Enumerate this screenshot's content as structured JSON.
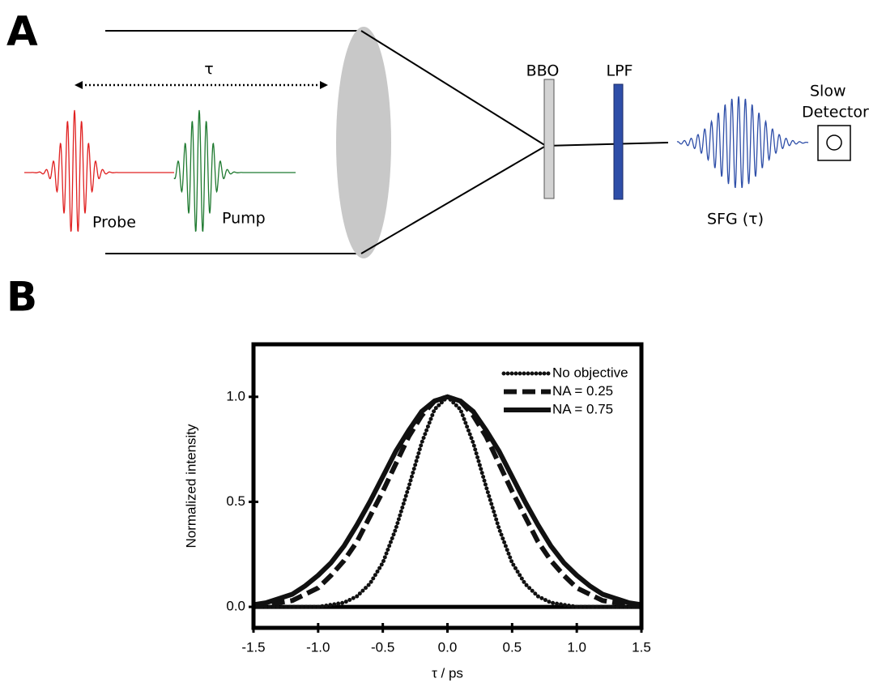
{
  "panels": [
    "A",
    "B"
  ],
  "diagram": {
    "tau": "τ",
    "probe": "Probe",
    "pump": "Pump",
    "bbo": "BBO",
    "lpf": "LPF",
    "detector": [
      "Slow",
      "Detector"
    ],
    "sfg": "SFG (τ)"
  },
  "chart_data": {
    "type": "line",
    "xlabel": "τ / ps",
    "ylabel": "Normalized intensity",
    "x": [
      -1.5,
      -1.4,
      -1.3,
      -1.2,
      -1.1,
      -1.0,
      -0.9,
      -0.8,
      -0.7,
      -0.6,
      -0.5,
      -0.4,
      -0.3,
      -0.2,
      -0.1,
      0,
      0.1,
      0.2,
      0.3,
      0.4,
      0.5,
      0.6,
      0.7,
      0.8,
      0.9,
      1.0,
      1.1,
      1.2,
      1.3,
      1.4,
      1.5
    ],
    "series": [
      {
        "name": "No objective",
        "color": "#111111",
        "style": "dotted",
        "values": [
          0,
          0,
          0,
          0,
          0,
          0,
          0.01,
          0.02,
          0.05,
          0.11,
          0.21,
          0.37,
          0.57,
          0.78,
          0.94,
          1,
          0.94,
          0.78,
          0.57,
          0.37,
          0.21,
          0.11,
          0.05,
          0.02,
          0.01,
          0,
          0,
          0,
          0,
          0,
          0
        ]
      },
      {
        "name": "NA = 0.25",
        "color": "#111111",
        "style": "dashed",
        "values": [
          0,
          0.01,
          0.02,
          0.03,
          0.06,
          0.09,
          0.15,
          0.22,
          0.31,
          0.43,
          0.55,
          0.68,
          0.81,
          0.91,
          0.98,
          1,
          0.98,
          0.91,
          0.81,
          0.68,
          0.55,
          0.43,
          0.31,
          0.22,
          0.15,
          0.09,
          0.06,
          0.03,
          0.02,
          0.01,
          0
        ]
      },
      {
        "name": "NA = 0.75",
        "color": "#111111",
        "style": "solid",
        "values": [
          0.01,
          0.02,
          0.04,
          0.06,
          0.1,
          0.15,
          0.21,
          0.29,
          0.39,
          0.5,
          0.62,
          0.74,
          0.84,
          0.93,
          0.98,
          1,
          0.98,
          0.93,
          0.84,
          0.74,
          0.62,
          0.5,
          0.39,
          0.29,
          0.21,
          0.15,
          0.1,
          0.06,
          0.04,
          0.02,
          0.01
        ]
      }
    ],
    "xlim": [
      -1.5,
      1.5
    ],
    "xticks": [
      -1.5,
      {
        "value": -1,
        "label": "-1.0"
      },
      -0.5,
      {
        "value": 0,
        "label": "0.0"
      },
      0.5,
      {
        "value": 1,
        "label": "1.0"
      },
      1.5
    ],
    "ylim": [
      -0.1,
      1.25
    ],
    "yticks": [
      {
        "value": 0,
        "label": "0.0"
      },
      0.5,
      {
        "value": 1,
        "label": "1.0"
      }
    ],
    "legend": "upper right"
  }
}
